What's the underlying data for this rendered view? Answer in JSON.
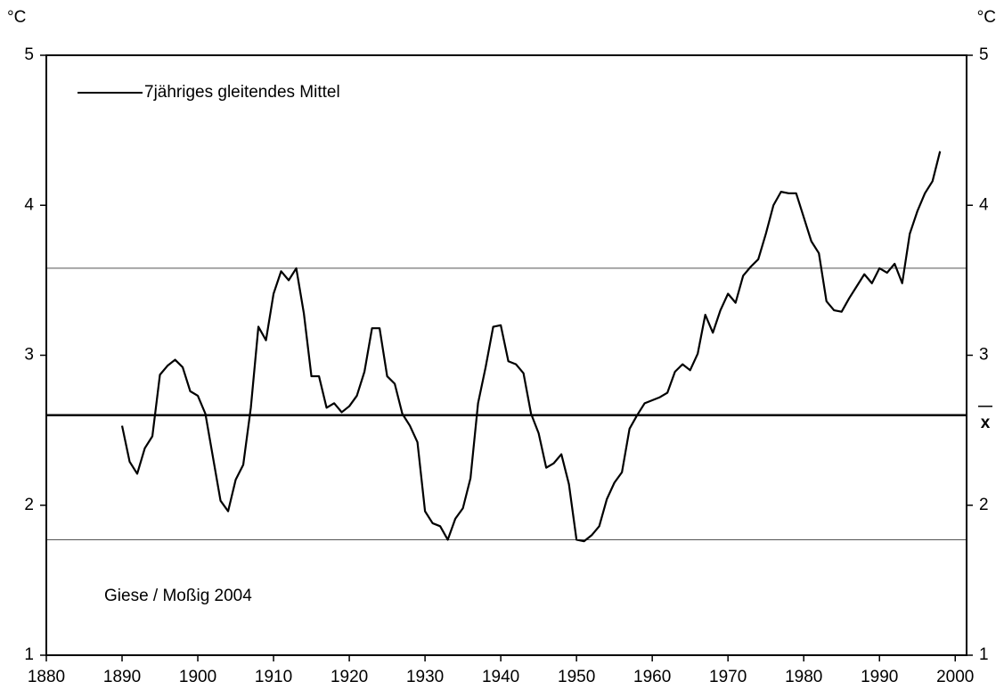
{
  "chart_data": {
    "type": "line",
    "y_label": "°C",
    "y2_label": "°C",
    "annotation": "Giese / Moßig 2004",
    "x": [
      1890,
      1891,
      1892,
      1893,
      1894,
      1895,
      1896,
      1897,
      1898,
      1899,
      1900,
      1901,
      1902,
      1903,
      1904,
      1905,
      1906,
      1907,
      1908,
      1909,
      1910,
      1911,
      1912,
      1913,
      1914,
      1915,
      1916,
      1917,
      1918,
      1919,
      1920,
      1921,
      1922,
      1923,
      1924,
      1925,
      1926,
      1927,
      1928,
      1929,
      1930,
      1931,
      1932,
      1933,
      1934,
      1935,
      1936,
      1937,
      1938,
      1939,
      1940,
      1941,
      1942,
      1943,
      1944,
      1945,
      1946,
      1947,
      1948,
      1949,
      1950,
      1951,
      1952,
      1953,
      1954,
      1955,
      1956,
      1957,
      1958,
      1959,
      1960,
      1961,
      1962,
      1963,
      1964,
      1965,
      1966,
      1967,
      1968,
      1969,
      1970,
      1971,
      1972,
      1973,
      1974,
      1975,
      1976,
      1977,
      1978,
      1979,
      1980,
      1981,
      1982,
      1983,
      1984,
      1985,
      1986,
      1987,
      1988,
      1989,
      1990,
      1991,
      1992,
      1993,
      1994,
      1995,
      1996,
      1997,
      1998
    ],
    "series": [
      {
        "name": "7jähriges gleitendes Mittel",
        "color": "#000000",
        "values": [
          2.53,
          2.29,
          2.21,
          2.38,
          2.46,
          2.87,
          2.93,
          2.97,
          2.92,
          2.76,
          2.73,
          2.61,
          2.32,
          2.03,
          1.96,
          2.17,
          2.27,
          2.65,
          3.19,
          3.1,
          3.41,
          3.56,
          3.5,
          3.58,
          3.28,
          2.86,
          2.86,
          2.65,
          2.68,
          2.62,
          2.66,
          2.73,
          2.89,
          3.18,
          3.18,
          2.86,
          2.81,
          2.61,
          2.53,
          2.42,
          1.96,
          1.88,
          1.86,
          1.77,
          1.91,
          1.98,
          2.18,
          2.68,
          2.92,
          3.19,
          3.2,
          2.96,
          2.94,
          2.88,
          2.61,
          2.48,
          2.25,
          2.28,
          2.34,
          2.14,
          1.77,
          1.76,
          1.8,
          1.86,
          2.04,
          2.15,
          2.22,
          2.51,
          2.6,
          2.68,
          2.7,
          2.72,
          2.75,
          2.89,
          2.94,
          2.9,
          3.01,
          3.27,
          3.15,
          3.3,
          3.41,
          3.35,
          3.53,
          3.59,
          3.64,
          3.81,
          4.0,
          4.09,
          4.08,
          4.08,
          3.92,
          3.76,
          3.68,
          3.36,
          3.3,
          3.29,
          3.38,
          3.46,
          3.54,
          3.48,
          3.58,
          3.55,
          3.61,
          3.48,
          3.81,
          3.96,
          4.08,
          4.16,
          4.36
        ]
      }
    ],
    "mean": {
      "value": 2.6,
      "label": "x"
    },
    "band": [
      1.77,
      3.58
    ],
    "xlim": [
      1880,
      2001.5
    ],
    "xticks": [
      1880,
      1890,
      1900,
      1910,
      1920,
      1930,
      1940,
      1950,
      1960,
      1970,
      1980,
      1990,
      2000
    ],
    "ylim": [
      1,
      5
    ],
    "yticks": [
      1,
      2,
      3,
      4,
      5
    ],
    "y2lim": [
      1,
      5
    ],
    "y2ticks": [
      1,
      2,
      3,
      4,
      5
    ]
  }
}
